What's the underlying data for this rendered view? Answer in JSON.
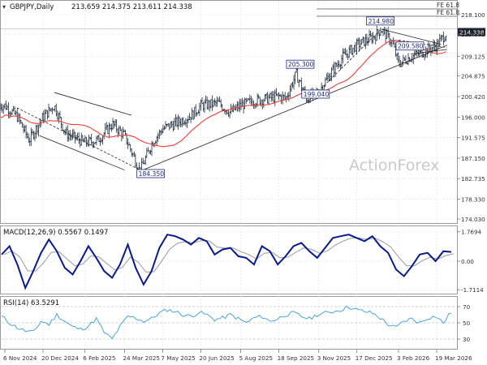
{
  "header": {
    "symbol": "GBPJPY,Daily",
    "ohlc": "213.659 214.375 213.611 214.338"
  },
  "watermark": "ActionForex",
  "colors": {
    "candle": "#1c2a3a",
    "ma": "#e8413a",
    "trendline": "#222222",
    "label_border": "#1f2a7a",
    "label_text": "#1f2a7a",
    "macd_line": "#0b1a8c",
    "macd_signal": "#9a9aa2",
    "rsi_line": "#3a9ad9",
    "rsi_level": "#aaaaaa",
    "price_tag_bg": "#1c2230",
    "price_tag_text": "#ffffff",
    "grid": "#e2e2e2"
  },
  "chart_data": [
    {
      "type": "candlestick",
      "title": "GBPJPY,Daily",
      "x_labels": [
        "6 Nov 2024",
        "20 Dec 2024",
        "6 Feb 2025",
        "24 Mar 2025",
        "7 May 2025",
        "20 Jun 2025",
        "5 Aug 2025",
        "18 Sep 2025",
        "3 Nov 2025",
        "17 Dec 2025",
        "3 Feb 2026",
        "19 Mar 2026"
      ],
      "y_ticks": [
        "218.100",
        "213.885",
        "209.125",
        "204.875",
        "200.420",
        "196.000",
        "191.575",
        "187.150",
        "182.735",
        "178.330",
        "174.030"
      ],
      "ylim": [
        174.03,
        218.1
      ],
      "last_price": "214.338",
      "ma_label": "",
      "closes_sample": [
        {
          "x": "6 Nov 2024",
          "y": 198.5
        },
        {
          "x": "20 Nov 2024",
          "y": 196.2
        },
        {
          "x": "4 Dec 2024",
          "y": 191.0
        },
        {
          "x": "20 Dec 2024",
          "y": 196.0
        },
        {
          "x": "2 Jan 2025",
          "y": 198.5
        },
        {
          "x": "15 Jan 2025",
          "y": 192.5
        },
        {
          "x": "6 Feb 2025",
          "y": 190.5
        },
        {
          "x": "21 Feb 2025",
          "y": 191.0
        },
        {
          "x": "10 Mar 2025",
          "y": 194.5
        },
        {
          "x": "24 Mar 2025",
          "y": 192.0
        },
        {
          "x": "11 Apr 2025",
          "y": 184.35
        },
        {
          "x": "25 Apr 2025",
          "y": 190.5
        },
        {
          "x": "7 May 2025",
          "y": 193.5
        },
        {
          "x": "26 May 2025",
          "y": 195.0
        },
        {
          "x": "10 Jun 2025",
          "y": 196.5
        },
        {
          "x": "20 Jun 2025",
          "y": 198.5
        },
        {
          "x": "10 Jul 2025",
          "y": 199.0
        },
        {
          "x": "24 Jul 2025",
          "y": 197.0
        },
        {
          "x": "5 Aug 2025",
          "y": 198.5
        },
        {
          "x": "20 Aug 2025",
          "y": 199.5
        },
        {
          "x": "5 Sep 2025",
          "y": 200.0
        },
        {
          "x": "18 Sep 2025",
          "y": 200.5
        },
        {
          "x": "26 Sep 2025",
          "y": 200.0
        },
        {
          "x": "8 Oct 2025",
          "y": 205.3
        },
        {
          "x": "20 Oct 2025",
          "y": 200.0
        },
        {
          "x": "3 Nov 2025",
          "y": 201.5
        },
        {
          "x": "17 Nov 2025",
          "y": 205.5
        },
        {
          "x": "1 Dec 2025",
          "y": 209.0
        },
        {
          "x": "17 Dec 2025",
          "y": 211.5
        },
        {
          "x": "7 Jan 2026",
          "y": 213.5
        },
        {
          "x": "14 Jan 2026",
          "y": 214.98
        },
        {
          "x": "27 Jan 2026",
          "y": 212.0
        },
        {
          "x": "3 Feb 2026",
          "y": 207.5
        },
        {
          "x": "17 Feb 2026",
          "y": 209.0
        },
        {
          "x": "3 Mar 2026",
          "y": 210.0
        },
        {
          "x": "19 Mar 2026",
          "y": 211.5
        },
        {
          "x": "31 Mar 2026",
          "y": 214.338
        }
      ],
      "annotations": [
        {
          "label": "184.350",
          "x": "11 Apr 2025",
          "y": 184.35
        },
        {
          "label": "205.300",
          "x": "8 Oct 2025",
          "y": 205.3
        },
        {
          "label": "199.040",
          "x": "20 Oct 2025",
          "y": 199.04
        },
        {
          "label": "214.980",
          "x": "14 Jan 2026",
          "y": 214.98
        },
        {
          "label": "209.580",
          "x": "17 Feb 2026",
          "y": 209.58
        }
      ],
      "fib_levels": [
        {
          "label": "FE 61.8",
          "y": 218.1
        },
        {
          "label": "FE 61.8",
          "y": 217.3
        }
      ]
    },
    {
      "type": "line",
      "title": "MACD(12,26,9) 0.5567 0.1497",
      "y_ticks": [
        "1.7694",
        "0.00",
        "-1.7114"
      ],
      "ylim": [
        -1.85,
        1.9
      ],
      "series": [
        {
          "name": "MACD",
          "values": [
            0.4,
            0.9,
            -0.2,
            -1.6,
            -0.6,
            0.5,
            1.3,
            0.6,
            -0.4,
            -0.8,
            0.0,
            0.9,
            0.2,
            -0.6,
            -1.0,
            -0.2,
            1.0,
            -0.4,
            -1.4,
            -0.6,
            0.8,
            1.6,
            1.5,
            1.3,
            1.0,
            1.4,
            1.2,
            0.4,
            0.7,
            0.8,
            0.3,
            0.2,
            -0.2,
            0.9,
            0.6,
            -0.2,
            0.3,
            0.9,
            1.1,
            0.6,
            0.2,
            0.8,
            1.4,
            1.5,
            1.6,
            1.4,
            1.2,
            1.5,
            0.9,
            0.5,
            -0.5,
            -0.9,
            -0.3,
            0.4,
            0.5,
            0.0,
            0.6,
            0.557
          ]
        }
      ]
    },
    {
      "type": "line",
      "title": "RSI(14) 63.5291",
      "y_ticks": [
        "70",
        "50",
        "30"
      ],
      "ylim": [
        0,
        100
      ],
      "series": [
        {
          "name": "RSI",
          "values": [
            58,
            50,
            44,
            40,
            38,
            52,
            48,
            60,
            52,
            45,
            42,
            46,
            55,
            38,
            30,
            45,
            58,
            56,
            52,
            55,
            62,
            66,
            64,
            60,
            58,
            63,
            60,
            54,
            56,
            60,
            55,
            50,
            56,
            58,
            52,
            55,
            60,
            62,
            58,
            55,
            60,
            62,
            64,
            66,
            70,
            66,
            64,
            62,
            56,
            48,
            44,
            52,
            55,
            50,
            56,
            58,
            50,
            63.53
          ]
        }
      ]
    }
  ]
}
